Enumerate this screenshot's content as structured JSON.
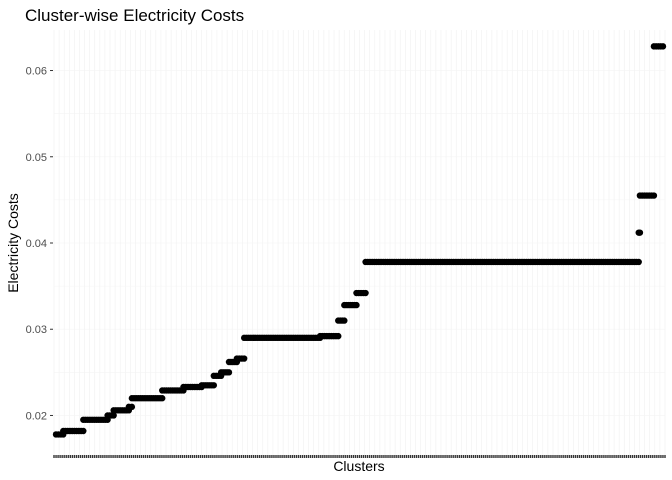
{
  "chart_data": {
    "type": "scatter",
    "title": "Cluster-wise Electricity Costs",
    "xlabel": "Clusters",
    "ylabel": "Electricity Costs",
    "ylim": [
      0.0153,
      0.0647
    ],
    "yticks": [
      0.02,
      0.03,
      0.04,
      0.05,
      0.06
    ],
    "ytick_labels": [
      "0.02",
      "0.03",
      "0.04",
      "0.05",
      "0.06"
    ],
    "x_tick_labels_hidden": true,
    "grid": true,
    "point_color": "#000000",
    "series": [
      {
        "segments": [
          {
            "x_start": 0.0,
            "x_end": 0.012,
            "y": 0.0178
          },
          {
            "x_start": 0.012,
            "x_end": 0.045,
            "y": 0.0182
          },
          {
            "x_start": 0.045,
            "x_end": 0.085,
            "y": 0.0195
          },
          {
            "x_start": 0.085,
            "x_end": 0.095,
            "y": 0.02
          },
          {
            "x_start": 0.095,
            "x_end": 0.12,
            "y": 0.0206
          },
          {
            "x_start": 0.12,
            "x_end": 0.125,
            "y": 0.021
          },
          {
            "x_start": 0.125,
            "x_end": 0.175,
            "y": 0.022
          },
          {
            "x_start": 0.175,
            "x_end": 0.21,
            "y": 0.0229
          },
          {
            "x_start": 0.21,
            "x_end": 0.24,
            "y": 0.0233
          },
          {
            "x_start": 0.24,
            "x_end": 0.26,
            "y": 0.0235
          },
          {
            "x_start": 0.26,
            "x_end": 0.272,
            "y": 0.0246
          },
          {
            "x_start": 0.272,
            "x_end": 0.285,
            "y": 0.025
          },
          {
            "x_start": 0.285,
            "x_end": 0.298,
            "y": 0.0262
          },
          {
            "x_start": 0.298,
            "x_end": 0.31,
            "y": 0.0266
          },
          {
            "x_start": 0.31,
            "x_end": 0.435,
            "y": 0.029
          },
          {
            "x_start": 0.435,
            "x_end": 0.465,
            "y": 0.0292
          },
          {
            "x_start": 0.465,
            "x_end": 0.475,
            "y": 0.031
          },
          {
            "x_start": 0.475,
            "x_end": 0.495,
            "y": 0.0328
          },
          {
            "x_start": 0.495,
            "x_end": 0.51,
            "y": 0.0342
          },
          {
            "x_start": 0.51,
            "x_end": 0.96,
            "y": 0.0378
          },
          {
            "x_start": 0.96,
            "x_end": 0.962,
            "y": 0.0412
          },
          {
            "x_start": 0.962,
            "x_end": 0.985,
            "y": 0.0455
          },
          {
            "x_start": 0.985,
            "x_end": 1.0,
            "y": 0.0628
          }
        ]
      }
    ]
  }
}
